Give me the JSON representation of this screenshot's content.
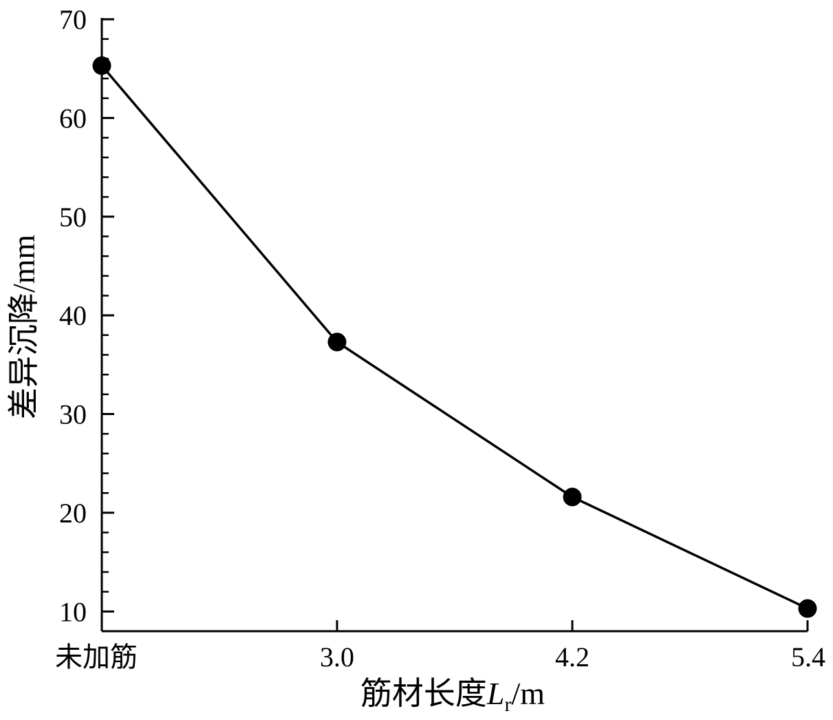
{
  "chart_data": {
    "type": "line",
    "title": "",
    "xlabel": {
      "prefix": "筋材长度",
      "variable": "L",
      "subscript": "r",
      "unit": "/m"
    },
    "ylabel": "差异沉降/mm",
    "categories": [
      "未加筋",
      "3.0",
      "4.2",
      "5.4"
    ],
    "series": [
      {
        "values": [
          65.3,
          37.3,
          21.6,
          10.3
        ]
      }
    ],
    "ylim": [
      8,
      70
    ],
    "yticks": [
      10,
      20,
      30,
      40,
      50,
      60,
      70
    ],
    "y_minor_step": 2,
    "grid": false,
    "legend": "none",
    "colors": {
      "line": "#000000",
      "marker": "#000000",
      "axis": "#000000"
    }
  }
}
